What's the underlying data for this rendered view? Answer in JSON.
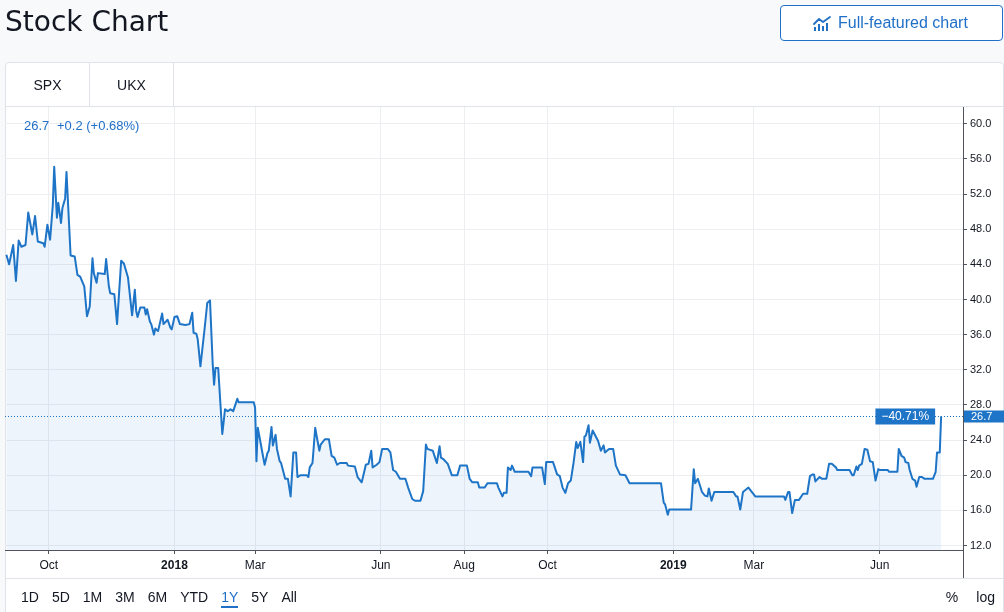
{
  "chart_data": {
    "type": "area",
    "title": "Stock Chart",
    "color": "#1e74c6",
    "x": [
      "2017-08-31",
      "2017-09-02",
      "2017-09-05",
      "2017-09-07",
      "2017-09-09",
      "2017-09-11",
      "2017-09-14",
      "2017-09-16",
      "2017-09-19",
      "2017-09-21",
      "2017-09-23",
      "2017-09-27",
      "2017-09-28",
      "2017-09-30",
      "2017-10-02",
      "2017-10-04",
      "2017-10-05",
      "2017-10-07",
      "2017-10-08",
      "2017-10-10",
      "2017-10-11",
      "2017-10-13",
      "2017-10-14",
      "2017-10-17",
      "2017-10-20",
      "2017-10-22",
      "2017-10-24",
      "2017-10-27",
      "2017-10-29",
      "2017-10-31",
      "2017-11-02",
      "2017-11-03",
      "2017-11-05",
      "2017-11-06",
      "2017-11-11",
      "2017-11-12",
      "2017-11-14",
      "2017-11-15",
      "2017-11-18",
      "2017-11-20",
      "2017-11-23",
      "2017-11-25",
      "2017-11-28",
      "2017-12-01",
      "2017-12-03",
      "2017-12-04",
      "2017-12-05",
      "2017-12-07",
      "2017-12-10",
      "2017-12-11",
      "2017-12-12",
      "2017-12-14",
      "2017-12-15",
      "2017-12-17",
      "2017-12-18",
      "2017-12-20",
      "2017-12-23",
      "2017-12-24",
      "2017-12-27",
      "2017-12-29",
      "2017-12-30",
      "2018-01-01",
      "2018-01-03",
      "2018-01-05",
      "2018-01-09",
      "2018-01-12",
      "2018-01-14",
      "2018-01-15",
      "2018-01-17",
      "2018-01-18",
      "2018-01-20",
      "2018-01-23",
      "2018-01-25",
      "2018-01-27",
      "2018-01-29",
      "2018-01-30",
      "2018-01-31",
      "2018-02-02",
      "2018-02-05",
      "2018-02-07",
      "2018-02-09",
      "2018-02-11",
      "2018-02-13",
      "2018-02-16",
      "2018-02-17",
      "2018-02-28",
      "2018-03-01",
      "2018-03-02",
      "2018-03-03",
      "2018-03-05",
      "2018-03-07",
      "2018-03-08",
      "2018-03-10",
      "2018-03-11",
      "2018-03-13",
      "2018-03-14",
      "2018-03-16",
      "2018-03-17",
      "2018-03-19",
      "2018-03-20",
      "2018-03-23",
      "2018-03-25",
      "2018-03-27",
      "2018-03-29",
      "2018-03-31",
      "2018-04-01",
      "2018-04-03",
      "2018-04-08",
      "2018-04-09",
      "2018-04-10",
      "2018-04-12",
      "2018-04-14",
      "2018-04-15",
      "2018-04-17",
      "2018-04-18",
      "2018-04-21",
      "2018-04-24",
      "2018-04-26",
      "2018-04-28",
      "2018-04-30",
      "2018-05-02",
      "2018-05-07",
      "2018-05-08",
      "2018-05-13",
      "2018-05-15",
      "2018-05-18",
      "2018-05-20",
      "2018-05-21",
      "2018-05-23",
      "2018-05-25",
      "2018-05-26",
      "2018-05-29",
      "2018-05-31",
      "2018-06-02",
      "2018-06-06",
      "2018-06-08",
      "2018-06-10",
      "2018-06-12",
      "2018-06-15",
      "2018-06-19",
      "2018-06-21",
      "2018-06-24",
      "2018-06-26",
      "2018-06-30",
      "2018-07-02",
      "2018-07-04",
      "2018-07-05",
      "2018-07-09",
      "2018-07-12",
      "2018-07-14",
      "2018-07-15",
      "2018-07-17",
      "2018-07-20",
      "2018-07-23",
      "2018-07-27",
      "2018-07-29",
      "2018-08-03",
      "2018-08-05",
      "2018-08-07",
      "2018-08-11",
      "2018-08-12",
      "2018-08-16",
      "2018-08-18",
      "2018-08-25",
      "2018-08-26",
      "2018-08-29",
      "2018-08-30",
      "2018-09-01",
      "2018-09-02",
      "2018-09-04",
      "2018-09-05",
      "2018-09-07",
      "2018-09-17",
      "2018-09-19",
      "2018-09-20",
      "2018-09-27",
      "2018-09-29",
      "2018-09-30",
      "2018-10-05",
      "2018-10-08",
      "2018-10-10",
      "2018-10-12",
      "2018-10-14",
      "2018-10-16",
      "2018-10-18",
      "2018-10-20",
      "2018-10-22",
      "2018-10-23",
      "2018-10-25",
      "2018-10-27",
      "2018-10-28",
      "2018-10-29",
      "2018-10-31",
      "2018-11-01",
      "2018-11-03",
      "2018-11-05",
      "2018-11-07",
      "2018-11-09",
      "2018-11-11",
      "2018-11-12",
      "2018-11-15",
      "2018-11-18",
      "2018-11-20",
      "2018-11-23",
      "2018-11-27",
      "2018-11-30",
      "2018-12-23",
      "2018-12-25",
      "2018-12-26",
      "2018-12-28",
      "2018-12-29",
      "2019-01-14",
      "2019-01-16",
      "2019-01-17",
      "2019-01-19",
      "2019-01-22",
      "2019-01-24",
      "2019-01-26",
      "2019-01-27",
      "2019-01-29",
      "2019-01-31",
      "2019-02-14",
      "2019-02-16",
      "2019-02-17",
      "2019-02-19",
      "2019-02-21",
      "2019-02-25",
      "2019-02-27",
      "2019-03-02",
      "2019-03-23",
      "2019-03-24",
      "2019-03-26",
      "2019-03-27",
      "2019-03-29",
      "2019-03-31",
      "2019-04-03",
      "2019-04-06",
      "2019-04-09",
      "2019-04-11",
      "2019-04-13",
      "2019-04-14",
      "2019-04-15",
      "2019-04-18",
      "2019-04-20",
      "2019-04-23",
      "2019-04-25",
      "2019-04-27",
      "2019-04-30",
      "2019-05-01",
      "2019-05-10",
      "2019-05-12",
      "2019-05-13",
      "2019-05-15",
      "2019-05-16",
      "2019-05-17",
      "2019-05-19",
      "2019-05-21",
      "2019-05-23",
      "2019-05-25",
      "2019-05-27",
      "2019-05-29",
      "2019-05-31",
      "2019-06-01",
      "2019-06-07",
      "2019-06-08",
      "2019-06-14",
      "2019-06-15",
      "2019-06-17",
      "2019-06-19",
      "2019-06-20",
      "2019-06-22",
      "2019-06-23",
      "2019-06-25",
      "2019-06-27",
      "2019-06-28",
      "2019-06-30",
      "2019-07-02",
      "2019-07-04",
      "2019-07-10",
      "2019-07-12",
      "2019-07-13",
      "2019-07-15",
      "2019-07-16"
    ],
    "values": [
      45.1,
      44.0,
      46.2,
      42.1,
      46.7,
      46.0,
      46.2,
      49.9,
      47.4,
      49.5,
      46.6,
      46.4,
      46.0,
      48.5,
      46.8,
      50.8,
      55.1,
      49.3,
      51.0,
      48.7,
      50.4,
      51.5,
      54.5,
      45.0,
      44.9,
      42.8,
      42.6,
      41.5,
      38.1,
      39.2,
      44.7,
      43.0,
      41.9,
      43.0,
      42.9,
      44.6,
      41.5,
      40.7,
      40.6,
      37.2,
      44.4,
      44.1,
      42.5,
      38.2,
      41.1,
      38.7,
      38.0,
      39.1,
      39.1,
      38.3,
      38.9,
      37.5,
      37.2,
      36.0,
      36.7,
      36.4,
      38.4,
      37.2,
      37.7,
      36.8,
      36.6,
      38.0,
      38.1,
      37.2,
      37.1,
      37.2,
      38.5,
      36.2,
      36.1,
      35.5,
      32.4,
      36.6,
      39.6,
      39.9,
      32.6,
      30.3,
      32.2,
      32.2,
      24.7,
      27.5,
      27.3,
      27.5,
      27.3,
      28.7,
      28.3,
      28.3,
      27.7,
      21.6,
      25.4,
      23.7,
      22.0,
      21.2,
      22.5,
      22.8,
      25.5,
      23.4,
      24.6,
      23.0,
      21.6,
      21.4,
      19.6,
      19.6,
      17.6,
      22.6,
      22.6,
      19.8,
      20.0,
      20.0,
      19.8,
      20.9,
      21.4,
      25.4,
      24.5,
      22.8,
      23.5,
      24.1,
      24.1,
      22.2,
      22.0,
      21.2,
      21.4,
      21.4,
      21.1,
      21.0,
      19.8,
      19.2,
      20.5,
      21.2,
      21.3,
      22.8,
      20.9,
      21.2,
      21.5,
      23.0,
      23.0,
      22.6,
      20.6,
      20.4,
      19.6,
      19.6,
      18.6,
      17.3,
      17.1,
      17.1,
      18.2,
      23.5,
      23.0,
      22.8,
      21.4,
      23.3,
      22.0,
      21.8,
      21.3,
      20.0,
      20.0,
      21.1,
      21.1,
      19.6,
      19.2,
      19.2,
      18.6,
      18.6,
      19.1,
      19.1,
      18.6,
      17.6,
      18.0,
      18.0,
      20.9,
      20.6,
      21.1,
      20.4,
      20.4,
      19.9,
      20.9,
      20.9,
      19.0,
      21.5,
      21.5,
      20.1,
      19.9,
      18.6,
      18.0,
      19.1,
      19.4,
      21.4,
      23.8,
      23.1,
      23.8,
      21.5,
      24.4,
      24.5,
      25.7,
      23.7,
      25.1,
      24.5,
      23.9,
      22.8,
      23.4,
      22.6,
      23.0,
      23.0,
      21.1,
      20.1,
      20.0,
      19.1,
      19.1,
      16.9,
      16.7,
      15.5,
      16.1,
      16.1,
      20.7,
      19.1,
      19.6,
      18.1,
      17.7,
      17.6,
      18.5,
      17.1,
      18.1,
      18.1,
      17.6,
      17.6,
      16.1,
      18.1,
      18.6,
      18.2,
      17.6,
      17.6,
      17.2,
      18.1,
      18.1,
      15.7,
      17.2,
      17.2,
      17.9,
      17.9,
      19.9,
      20.1,
      20.1,
      19.3,
      19.8,
      19.6,
      19.6,
      21.3,
      21.3,
      20.9,
      20.6,
      20.6,
      20.0,
      20.0,
      21.0,
      20.6,
      21.1,
      21.3,
      23.0,
      22.9,
      21.6,
      21.5,
      19.4,
      20.7,
      20.6,
      20.6,
      20.4,
      20.4,
      23.0,
      22.2,
      22.0,
      21.5,
      21.4,
      20.6,
      19.6,
      19.4,
      18.7,
      19.8,
      19.8,
      19.6,
      19.6,
      20.4,
      22.6,
      22.6,
      26.7
    ],
    "xlim": [
      "2017-08-30",
      "2019-08-01"
    ],
    "xticks": [
      {
        "value": "2017-10-01",
        "label": "Oct"
      },
      {
        "value": "2018-01-01",
        "label": "2018"
      },
      {
        "value": "2018-03-01",
        "label": "Mar"
      },
      {
        "value": "2018-06-01",
        "label": "Jun"
      },
      {
        "value": "2018-08-01",
        "label": "Aug"
      },
      {
        "value": "2018-10-01",
        "label": "Oct"
      },
      {
        "value": "2019-01-01",
        "label": "2019"
      },
      {
        "value": "2019-03-01",
        "label": "Mar"
      },
      {
        "value": "2019-06-01",
        "label": "Jun"
      }
    ],
    "ylim": [
      11.5,
      61.9
    ],
    "yticks": [
      {
        "value": 12,
        "label": "12.0"
      },
      {
        "value": 16,
        "label": "16.0"
      },
      {
        "value": 20,
        "label": "20.0"
      },
      {
        "value": 24,
        "label": "24.0"
      },
      {
        "value": 28,
        "label": "28.0"
      },
      {
        "value": 32,
        "label": "32.0"
      },
      {
        "value": 36,
        "label": "36.0"
      },
      {
        "value": 40,
        "label": "40.0"
      },
      {
        "value": 44,
        "label": "44.0"
      },
      {
        "value": 48,
        "label": "48.0"
      },
      {
        "value": 52,
        "label": "52.0"
      },
      {
        "value": 56,
        "label": "56.0"
      },
      {
        "value": 60,
        "label": "60.0"
      }
    ],
    "grid": true,
    "ref_lines": [
      {
        "axis": "y",
        "value": 26.7,
        "label": "−40.71%",
        "color": "#1e74c6",
        "line_style": "dotted"
      }
    ],
    "annotations": [
      "26.7",
      "+0.2 (+0.68%)",
      "Full-featured chart",
      "SPX",
      "UKX",
      "1D",
      "5D",
      "1M",
      "3M",
      "6M",
      "YTD",
      "1Y",
      "5Y",
      "All",
      "%",
      "log"
    ]
  }
}
